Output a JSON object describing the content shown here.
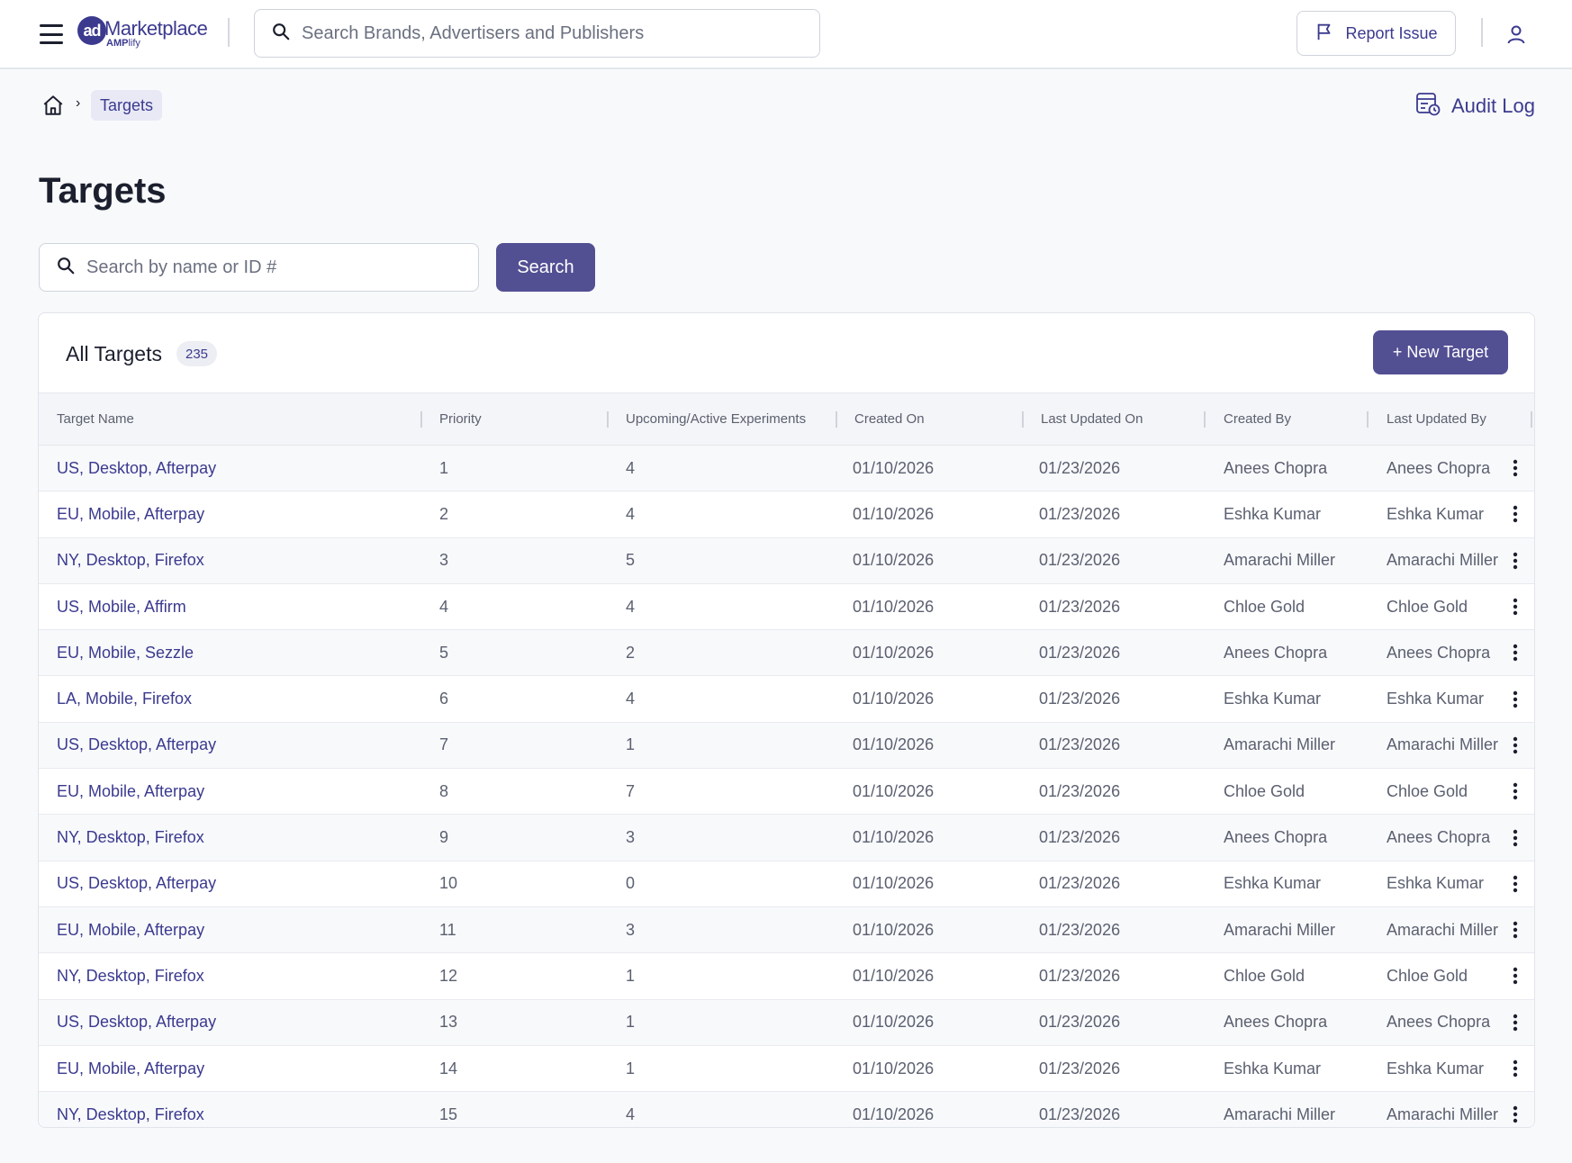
{
  "header": {
    "logo_mark": "ad",
    "logo_word": "Marketplace",
    "logo_sub_bold": "AMP",
    "logo_sub_rest": "lify",
    "global_search_placeholder": "Search Brands, Advertisers and Publishers",
    "report_issue_label": "Report Issue"
  },
  "breadcrumb": {
    "separator": "›",
    "current": "Targets"
  },
  "audit_log_label": "Audit Log",
  "page_title": "Targets",
  "target_search": {
    "placeholder": "Search by name or ID #",
    "button_label": "Search"
  },
  "table_card": {
    "title": "All Targets",
    "count": "235",
    "new_button_label": "+ New Target",
    "columns": [
      "Target Name",
      "Priority",
      "Upcoming/Active Experiments",
      "Created On",
      "Last Updated On",
      "Created By",
      "Last Updated By"
    ],
    "rows": [
      {
        "name": "US, Desktop, Afterpay",
        "priority": "1",
        "experiments": "4",
        "created_on": "01/10/2026",
        "updated_on": "01/23/2026",
        "created_by": "Anees Chopra",
        "updated_by": "Anees Chopra"
      },
      {
        "name": "EU, Mobile, Afterpay",
        "priority": "2",
        "experiments": "4",
        "created_on": "01/10/2026",
        "updated_on": "01/23/2026",
        "created_by": "Eshka Kumar",
        "updated_by": "Eshka Kumar"
      },
      {
        "name": "NY, Desktop, Firefox",
        "priority": "3",
        "experiments": "5",
        "created_on": "01/10/2026",
        "updated_on": "01/23/2026",
        "created_by": "Amarachi Miller",
        "updated_by": "Amarachi Miller"
      },
      {
        "name": "US, Mobile, Affirm",
        "priority": "4",
        "experiments": "4",
        "created_on": "01/10/2026",
        "updated_on": "01/23/2026",
        "created_by": "Chloe Gold",
        "updated_by": "Chloe Gold"
      },
      {
        "name": "EU, Mobile, Sezzle",
        "priority": "5",
        "experiments": "2",
        "created_on": "01/10/2026",
        "updated_on": "01/23/2026",
        "created_by": "Anees Chopra",
        "updated_by": "Anees Chopra"
      },
      {
        "name": "LA, Mobile, Firefox",
        "priority": "6",
        "experiments": "4",
        "created_on": "01/10/2026",
        "updated_on": "01/23/2026",
        "created_by": "Eshka Kumar",
        "updated_by": "Eshka Kumar"
      },
      {
        "name": "US, Desktop, Afterpay",
        "priority": "7",
        "experiments": "1",
        "created_on": "01/10/2026",
        "updated_on": "01/23/2026",
        "created_by": "Amarachi Miller",
        "updated_by": "Amarachi Miller"
      },
      {
        "name": "EU, Mobile, Afterpay",
        "priority": "8",
        "experiments": "7",
        "created_on": "01/10/2026",
        "updated_on": "01/23/2026",
        "created_by": "Chloe Gold",
        "updated_by": "Chloe Gold"
      },
      {
        "name": "NY, Desktop, Firefox",
        "priority": "9",
        "experiments": "3",
        "created_on": "01/10/2026",
        "updated_on": "01/23/2026",
        "created_by": "Anees Chopra",
        "updated_by": "Anees Chopra"
      },
      {
        "name": "US, Desktop, Afterpay",
        "priority": "10",
        "experiments": "0",
        "created_on": "01/10/2026",
        "updated_on": "01/23/2026",
        "created_by": "Eshka Kumar",
        "updated_by": "Eshka Kumar"
      },
      {
        "name": "EU, Mobile, Afterpay",
        "priority": "11",
        "experiments": "3",
        "created_on": "01/10/2026",
        "updated_on": "01/23/2026",
        "created_by": "Amarachi Miller",
        "updated_by": "Amarachi Miller"
      },
      {
        "name": "NY, Desktop, Firefox",
        "priority": "12",
        "experiments": "1",
        "created_on": "01/10/2026",
        "updated_on": "01/23/2026",
        "created_by": "Chloe Gold",
        "updated_by": "Chloe Gold"
      },
      {
        "name": "US, Desktop, Afterpay",
        "priority": "13",
        "experiments": "1",
        "created_on": "01/10/2026",
        "updated_on": "01/23/2026",
        "created_by": "Anees Chopra",
        "updated_by": "Anees Chopra"
      },
      {
        "name": "EU, Mobile, Afterpay",
        "priority": "14",
        "experiments": "1",
        "created_on": "01/10/2026",
        "updated_on": "01/23/2026",
        "created_by": "Eshka Kumar",
        "updated_by": "Eshka Kumar"
      },
      {
        "name": "NY, Desktop, Firefox",
        "priority": "15",
        "experiments": "4",
        "created_on": "01/10/2026",
        "updated_on": "01/23/2026",
        "created_by": "Amarachi Miller",
        "updated_by": "Amarachi Miller"
      }
    ]
  },
  "icons": {
    "menu": "hamburger-menu-icon",
    "search": "search-icon",
    "flag": "flag-icon",
    "user": "user-icon",
    "home": "home-icon",
    "audit": "audit-log-icon",
    "row_actions": "more-vertical-icon"
  },
  "colors": {
    "primary": "#524f93",
    "brand_text": "#3b3a8f",
    "page_bg": "#f8f9fb"
  }
}
